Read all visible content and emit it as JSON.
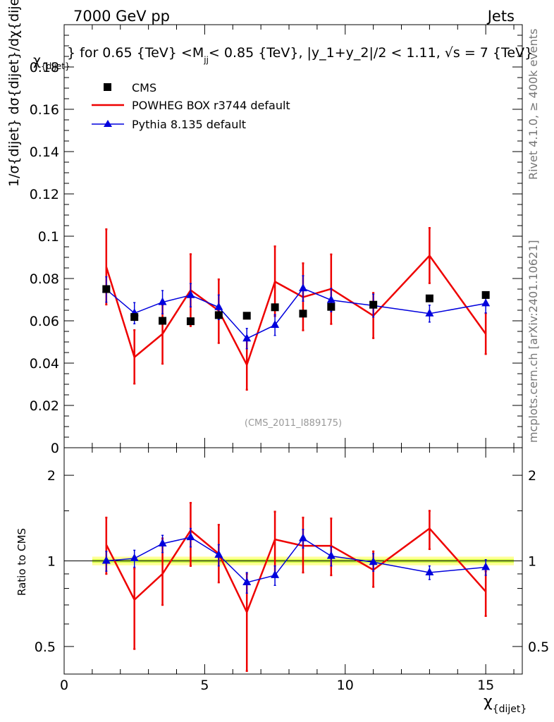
{
  "header": {
    "left": "7000 GeV pp",
    "right": "Jets"
  },
  "side_labels": {
    "rivet": "Rivet 4.1.0, ≥ 400k events",
    "mcplots": "mcplots.cern.ch [arXiv:2401.10621]"
  },
  "watermark": "(CMS_2011_I889175)",
  "plot_title": "} for 0.65 {TeV} <M",
  "plot_title_sub": "jj",
  "plot_title_rest": "< 0.85 {TeV}, |y_1+y_2|/2 < 1.11, √s = 7 {TeV}",
  "title_overlap": "χ",
  "title_overlap_sub": "{dijet}",
  "ylabel_main": "1/σ{dijet} dσ{dijet}/dχ{dijet}",
  "ylabel_ratio": "Ratio to CMS",
  "xlabel": "χ",
  "xlabel_sub": "{dijet}",
  "legend": [
    {
      "name": "CMS",
      "color": "#000000",
      "marker": "square"
    },
    {
      "name": "POWHEG BOX r3744 default",
      "color": "#ee0000",
      "marker": "line"
    },
    {
      "name": "Pythia 8.135 default",
      "color": "#0000dd",
      "marker": "triangle"
    }
  ],
  "colors": {
    "cms": "#000000",
    "powheg": "#ee0000",
    "pythia": "#0000dd",
    "band_inner": "#ccff44",
    "band_outer": "#ffff99",
    "ref_line": "#000000"
  },
  "chart_data": [
    {
      "type": "scatter",
      "panel": "main",
      "xlim": [
        0,
        16.3
      ],
      "ylim": [
        0,
        0.2
      ],
      "yticks": [
        0,
        0.02,
        0.04,
        0.06,
        0.08,
        0.1,
        0.12,
        0.14,
        0.16,
        0.18
      ],
      "ytick_labels": [
        "0",
        "0.02",
        "0.04",
        "0.06",
        "0.08",
        "0.1",
        "0.12",
        "0.14",
        "0.16",
        "0.18"
      ],
      "x": [
        1.5,
        2.5,
        3.5,
        4.5,
        5.5,
        6.5,
        7.5,
        8.5,
        9.5,
        11,
        13,
        15
      ],
      "series": [
        {
          "name": "CMS",
          "values": [
            0.075,
            0.0618,
            0.06,
            0.0598,
            0.0627,
            0.0624,
            0.0664,
            0.0634,
            0.0666,
            0.0676,
            0.0706,
            0.0722
          ]
        },
        {
          "name": "POWHEG BOX r3744 default",
          "values": [
            0.0855,
            0.0428,
            0.0538,
            0.0745,
            0.0648,
            0.0392,
            0.0785,
            0.0712,
            0.0751,
            0.0624,
            0.0908,
            0.0538
          ],
          "err_hi": [
            0.0178,
            0.0128,
            0.0138,
            0.017,
            0.0148,
            0.012,
            0.0167,
            0.016,
            0.0163,
            0.0108,
            0.0131,
            0.0098
          ],
          "err_lo": [
            0.0178,
            0.0125,
            0.0141,
            0.017,
            0.0153,
            0.0118,
            0.0163,
            0.0157,
            0.0166,
            0.0106,
            0.013,
            0.0095
          ]
        },
        {
          "name": "Pythia 8.135 default",
          "values": [
            0.0748,
            0.0636,
            0.0688,
            0.0721,
            0.0664,
            0.0516,
            0.058,
            0.0753,
            0.0698,
            0.0672,
            0.0634,
            0.0682
          ],
          "err_hi": [
            0.006,
            0.005,
            0.0055,
            0.0055,
            0.0058,
            0.0048,
            0.0049,
            0.006,
            0.0055,
            0.0054,
            0.004,
            0.0045
          ],
          "err_lo": [
            0.006,
            0.005,
            0.0055,
            0.0055,
            0.0058,
            0.0048,
            0.0049,
            0.006,
            0.0055,
            0.0054,
            0.004,
            0.0045
          ]
        }
      ]
    },
    {
      "type": "scatter",
      "panel": "ratio",
      "ylabel": "Ratio to CMS",
      "xlabel": "χ{dijet}",
      "xlim": [
        0,
        16.3
      ],
      "xticks": [
        0,
        5,
        10,
        15
      ],
      "xtick_labels": [
        "0",
        "5",
        "10",
        "15"
      ],
      "ylim": [
        0.4,
        2.5
      ],
      "yscale": "log",
      "yticks": [
        0.5,
        1,
        2
      ],
      "ytick_labels": [
        "0.5",
        "1",
        "2"
      ],
      "band": {
        "x": [
          1,
          16
        ],
        "inner": [
          0.985,
          1.015
        ],
        "outer": [
          0.965,
          1.035
        ]
      },
      "x": [
        1.5,
        2.5,
        3.5,
        4.5,
        5.5,
        6.5,
        7.5,
        8.5,
        9.5,
        11,
        13,
        15
      ],
      "series": [
        {
          "name": "POWHEG BOX r3744 default",
          "values": [
            1.14,
            0.73,
            0.9,
            1.28,
            1.06,
            0.66,
            1.19,
            1.13,
            1.13,
            0.93,
            1.3,
            0.78
          ],
          "err_hi": [
            0.28,
            0.21,
            0.3,
            0.32,
            0.28,
            0.24,
            0.3,
            0.29,
            0.28,
            0.15,
            0.2,
            0.14
          ],
          "err_lo": [
            0.24,
            0.24,
            0.2,
            0.32,
            0.22,
            0.25,
            0.3,
            0.22,
            0.24,
            0.12,
            0.2,
            0.14
          ]
        },
        {
          "name": "Pythia 8.135 default",
          "values": [
            1.0,
            1.02,
            1.15,
            1.21,
            1.05,
            0.84,
            0.89,
            1.2,
            1.04,
            0.99,
            0.91,
            0.95
          ],
          "err_hi": [
            0.08,
            0.07,
            0.08,
            0.09,
            0.09,
            0.07,
            0.07,
            0.09,
            0.08,
            0.07,
            0.05,
            0.06
          ],
          "err_lo": [
            0.08,
            0.07,
            0.08,
            0.09,
            0.09,
            0.07,
            0.07,
            0.09,
            0.08,
            0.07,
            0.05,
            0.06
          ]
        }
      ]
    }
  ]
}
